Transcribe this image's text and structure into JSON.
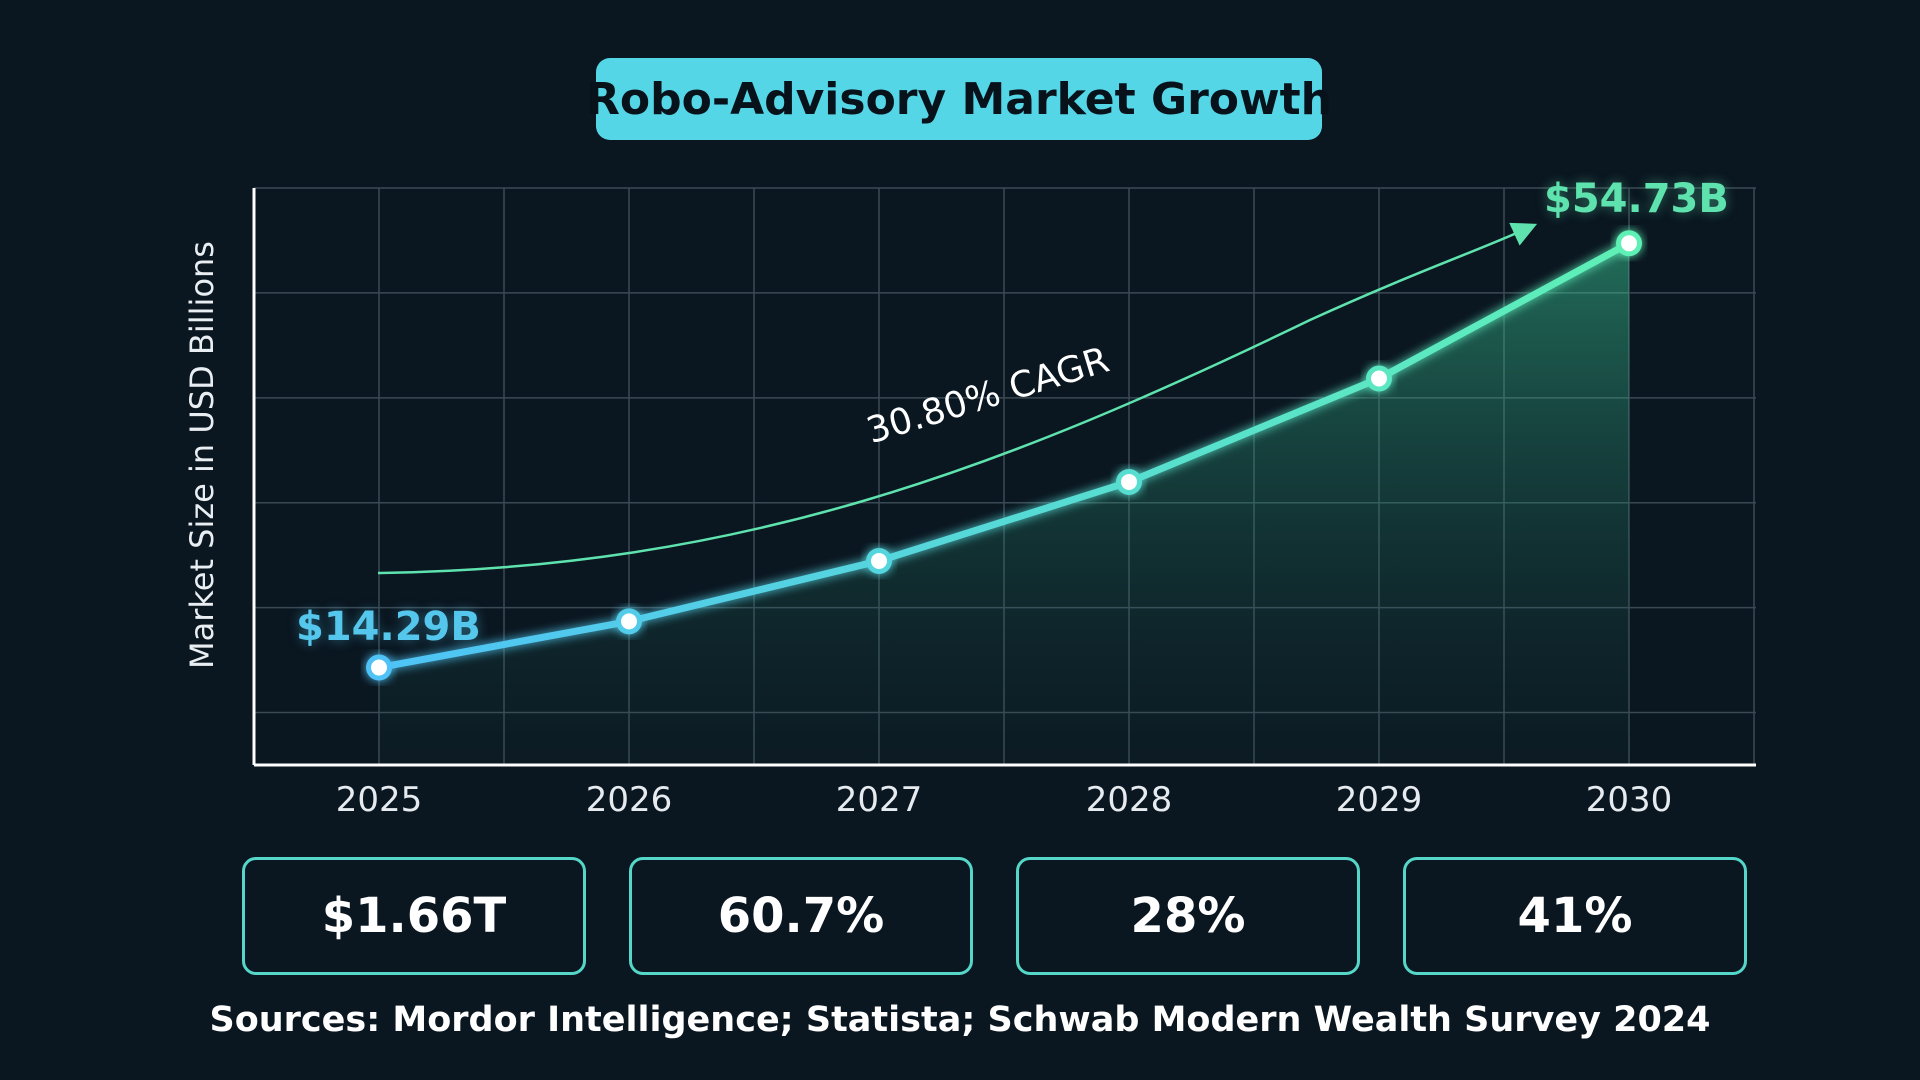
{
  "chart_data": {
    "type": "line",
    "title": "Robo-Advisory Market Growth",
    "xlabel": "",
    "ylabel": "Market Size in USD Billions",
    "categories": [
      "2025",
      "2026",
      "2027",
      "2028",
      "2029",
      "2030"
    ],
    "series": [
      {
        "values": [
          14.29,
          18.69,
          24.45,
          31.98,
          41.84,
          54.73
        ]
      }
    ],
    "ylim": [
      5,
      60
    ],
    "grid": true,
    "legend": "none",
    "annotations": {
      "start_label": "$14.29B",
      "end_label": "$54.73B",
      "cagr_label": "30.80% CAGR"
    },
    "colors": {
      "start": "#4fc3f7",
      "end": "#5ef0b6"
    }
  },
  "stats": [
    {
      "value": "$1.66T"
    },
    {
      "value": "60.7%"
    },
    {
      "value": "28%"
    },
    {
      "value": "41%"
    }
  ],
  "footer": {
    "sources": "Sources: Mordor Intelligence; Statista; Schwab Modern Wealth Survey 2024"
  }
}
